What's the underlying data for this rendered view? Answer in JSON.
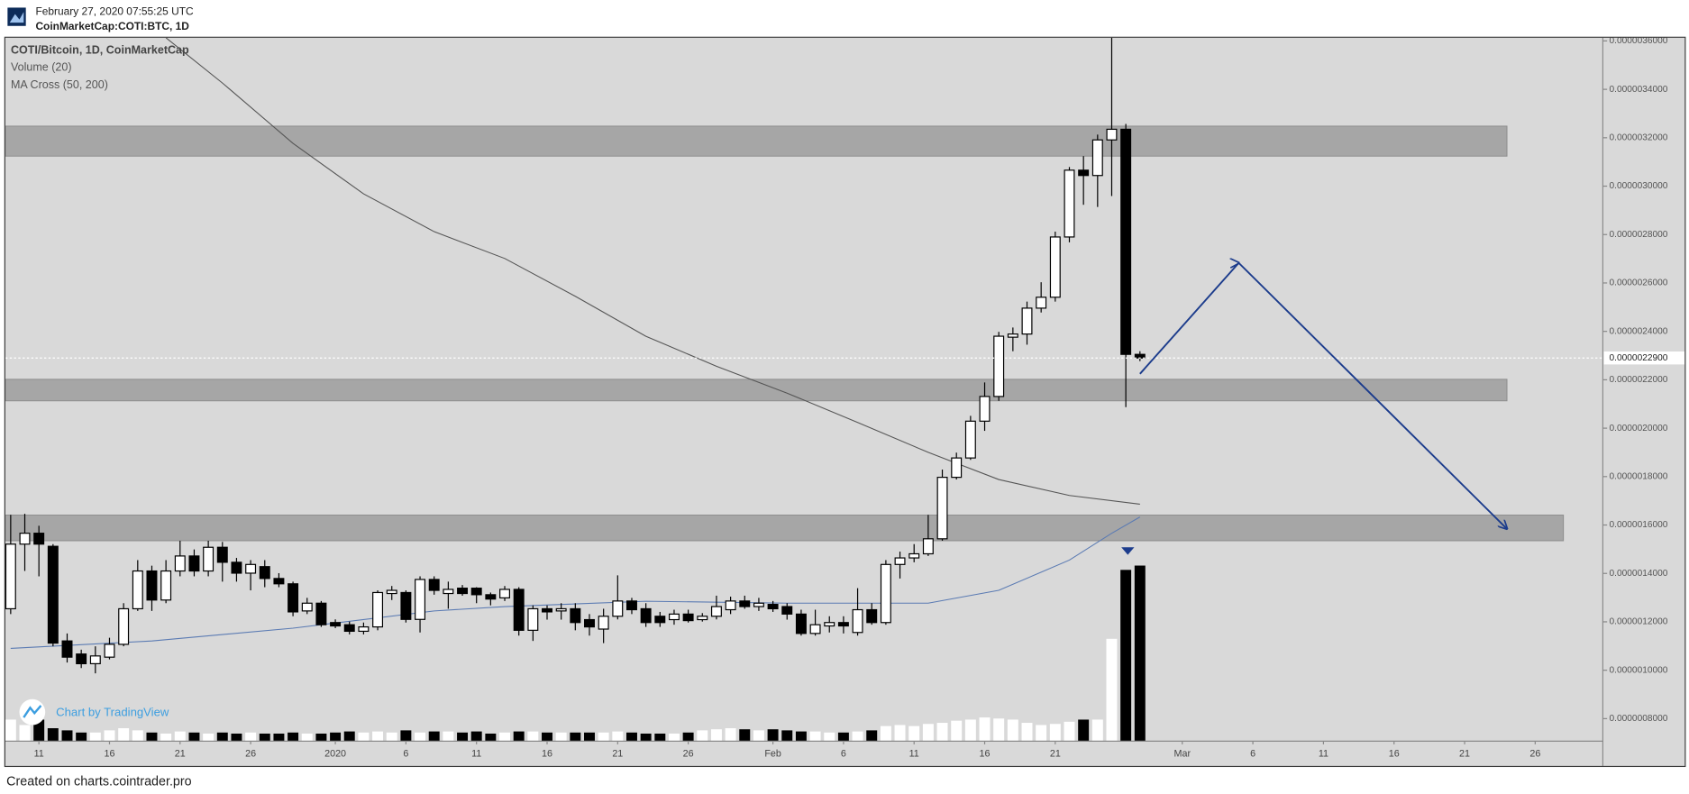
{
  "header": {
    "timestamp": "February 27, 2020 07:55:25 UTC",
    "symbol": "CoinMarketCap:COTI:BTC, 1D"
  },
  "footer": "Created on charts.cointrader.pro",
  "chart_data": {
    "type": "candlestick",
    "legend": [
      "COTI/Bitcoin, 1D, CoinMarketCap",
      "Volume (20)",
      "MA Cross (50, 200)"
    ],
    "watermark": "Chart by TradingView",
    "xlim": [
      "2019-12-08T15",
      "2020-03-30T19"
    ],
    "ylim": [
      7.07e-07,
      3.613e-06
    ],
    "yticks": [
      {
        "value": 8e-07,
        "label": "0.0000008000"
      },
      {
        "value": 1e-06,
        "label": "0.0000010000"
      },
      {
        "value": 1.2e-06,
        "label": "0.0000012000"
      },
      {
        "value": 1.4e-06,
        "label": "0.0000014000"
      },
      {
        "value": 1.6e-06,
        "label": "0.0000016000"
      },
      {
        "value": 1.8e-06,
        "label": "0.0000018000"
      },
      {
        "value": 2e-06,
        "label": "0.0000020000"
      },
      {
        "value": 2.2e-06,
        "label": "0.0000022000"
      },
      {
        "value": 2.4e-06,
        "label": "0.0000024000"
      },
      {
        "value": 2.6e-06,
        "label": "0.0000026000"
      },
      {
        "value": 2.8e-06,
        "label": "0.0000028000"
      },
      {
        "value": 3e-06,
        "label": "0.0000030000"
      },
      {
        "value": 3.2e-06,
        "label": "0.0000032000"
      },
      {
        "value": 3.4e-06,
        "label": "0.0000034000"
      },
      {
        "value": 3.6e-06,
        "label": "0.0000036000"
      }
    ],
    "xticks": [
      {
        "value": "2019-12-11",
        "label": "11"
      },
      {
        "value": "2019-12-16",
        "label": "16"
      },
      {
        "value": "2019-12-21",
        "label": "21"
      },
      {
        "value": "2019-12-26",
        "label": "26"
      },
      {
        "value": "2020-01-01",
        "label": "2020"
      },
      {
        "value": "2020-01-06",
        "label": "6"
      },
      {
        "value": "2020-01-11",
        "label": "11"
      },
      {
        "value": "2020-01-16",
        "label": "16"
      },
      {
        "value": "2020-01-21",
        "label": "21"
      },
      {
        "value": "2020-01-26",
        "label": "26"
      },
      {
        "value": "2020-02-01",
        "label": "Feb"
      },
      {
        "value": "2020-02-06",
        "label": "6"
      },
      {
        "value": "2020-02-11",
        "label": "11"
      },
      {
        "value": "2020-02-16",
        "label": "16"
      },
      {
        "value": "2020-02-21",
        "label": "21"
      },
      {
        "value": "2020-03-01",
        "label": "Mar"
      },
      {
        "value": "2020-03-06",
        "label": "6"
      },
      {
        "value": "2020-03-11",
        "label": "11"
      },
      {
        "value": "2020-03-16",
        "label": "16"
      },
      {
        "value": "2020-03-21",
        "label": "21"
      },
      {
        "value": "2020-03-26",
        "label": "26"
      }
    ],
    "last_price": {
      "value": 2.29e-06,
      "label": "0.0000022900"
    },
    "candles": {
      "up_color": "#ffffff",
      "down_color": "#000000",
      "x": [
        "2019-12-09",
        "2019-12-10",
        "2019-12-11",
        "2019-12-12",
        "2019-12-13",
        "2019-12-14",
        "2019-12-15",
        "2019-12-16",
        "2019-12-17",
        "2019-12-18",
        "2019-12-19",
        "2019-12-20",
        "2019-12-21",
        "2019-12-22",
        "2019-12-23",
        "2019-12-24",
        "2019-12-25",
        "2019-12-26",
        "2019-12-27",
        "2019-12-28",
        "2019-12-29",
        "2019-12-30",
        "2019-12-31",
        "2020-01-01",
        "2020-01-02",
        "2020-01-03",
        "2020-01-04",
        "2020-01-05",
        "2020-01-06",
        "2020-01-07",
        "2020-01-08",
        "2020-01-09",
        "2020-01-10",
        "2020-01-11",
        "2020-01-12",
        "2020-01-13",
        "2020-01-14",
        "2020-01-15",
        "2020-01-16",
        "2020-01-17",
        "2020-01-18",
        "2020-01-19",
        "2020-01-20",
        "2020-01-21",
        "2020-01-22",
        "2020-01-23",
        "2020-01-24",
        "2020-01-25",
        "2020-01-26",
        "2020-01-27",
        "2020-01-28",
        "2020-01-29",
        "2020-01-30",
        "2020-01-31",
        "2020-02-01",
        "2020-02-02",
        "2020-02-03",
        "2020-02-04",
        "2020-02-05",
        "2020-02-06",
        "2020-02-07",
        "2020-02-08",
        "2020-02-09",
        "2020-02-10",
        "2020-02-11",
        "2020-02-12",
        "2020-02-13",
        "2020-02-14",
        "2020-02-15",
        "2020-02-16",
        "2020-02-17",
        "2020-02-18",
        "2020-02-19",
        "2020-02-20",
        "2020-02-21",
        "2020-02-22",
        "2020-02-23",
        "2020-02-24",
        "2020-02-25",
        "2020-02-26",
        "2020-02-27"
      ],
      "open": [
        1.254e-06,
        1.521e-06,
        1.566e-06,
        1.512e-06,
        1.121e-06,
        1.067e-06,
        1.027e-06,
        1.054e-06,
        1.107e-06,
        1.254e-06,
        1.41e-06,
        1.29e-06,
        1.41e-06,
        1.472e-06,
        1.41e-06,
        1.508e-06,
        1.446e-06,
        1.401e-06,
        1.428e-06,
        1.379e-06,
        1.357e-06,
        1.245e-06,
        1.277e-06,
        1.197e-06,
        1.188e-06,
        1.161e-06,
        1.179e-06,
        1.317e-06,
        1.321e-06,
        1.21e-06,
        1.375e-06,
        1.317e-06,
        1.339e-06,
        1.339e-06,
        1.312e-06,
        1.299e-06,
        1.334e-06,
        1.165e-06,
        1.254e-06,
        1.245e-06,
        1.254e-06,
        1.209e-06,
        1.17e-06,
        1.223e-06,
        1.286e-06,
        1.254e-06,
        1.223e-06,
        1.209e-06,
        1.232e-06,
        1.209e-06,
        1.223e-06,
        1.25e-06,
        1.286e-06,
        1.263e-06,
        1.272e-06,
        1.263e-06,
        1.232e-06,
        1.152e-06,
        1.183e-06,
        1.197e-06,
        1.156e-06,
        1.25e-06,
        1.197e-06,
        1.437e-06,
        1.464e-06,
        1.481e-06,
        1.543e-06,
        1.797e-06,
        1.877e-06,
        2.029e-06,
        2.131e-06,
        2.376e-06,
        2.389e-06,
        2.496e-06,
        2.541e-06,
        2.79e-06,
        3.066e-06,
        3.044e-06,
        3.191e-06,
        3.235e-06,
        2.305e-06
      ],
      "close": [
        1.521e-06,
        1.566e-06,
        1.521e-06,
        1.112e-06,
        1.054e-06,
        1.027e-06,
        1.059e-06,
        1.107e-06,
        1.254e-06,
        1.41e-06,
        1.29e-06,
        1.41e-06,
        1.472e-06,
        1.41e-06,
        1.508e-06,
        1.446e-06,
        1.401e-06,
        1.437e-06,
        1.379e-06,
        1.357e-06,
        1.241e-06,
        1.277e-06,
        1.188e-06,
        1.183e-06,
        1.161e-06,
        1.179e-06,
        1.321e-06,
        1.33e-06,
        1.21e-06,
        1.375e-06,
        1.33e-06,
        1.334e-06,
        1.317e-06,
        1.312e-06,
        1.294e-06,
        1.334e-06,
        1.165e-06,
        1.254e-06,
        1.241e-06,
        1.254e-06,
        1.197e-06,
        1.179e-06,
        1.223e-06,
        1.286e-06,
        1.25e-06,
        1.197e-06,
        1.197e-06,
        1.232e-06,
        1.205e-06,
        1.223e-06,
        1.263e-06,
        1.286e-06,
        1.263e-06,
        1.277e-06,
        1.254e-06,
        1.232e-06,
        1.152e-06,
        1.188e-06,
        1.197e-06,
        1.183e-06,
        1.25e-06,
        1.197e-06,
        1.437e-06,
        1.464e-06,
        1.481e-06,
        1.543e-06,
        1.797e-06,
        1.877e-06,
        2.029e-06,
        2.131e-06,
        2.38e-06,
        2.389e-06,
        2.496e-06,
        2.541e-06,
        2.79e-06,
        3.066e-06,
        3.044e-06,
        3.191e-06,
        3.235e-06,
        2.305e-06,
        2.29e-06
      ],
      "high": [
        1.642e-06,
        1.646e-06,
        1.597e-06,
        1.521e-06,
        1.152e-06,
        1.085e-06,
        1.099e-06,
        1.134e-06,
        1.277e-06,
        1.455e-06,
        1.432e-06,
        1.455e-06,
        1.535e-06,
        1.499e-06,
        1.535e-06,
        1.53e-06,
        1.464e-06,
        1.455e-06,
        1.455e-06,
        1.401e-06,
        1.366e-06,
        1.299e-06,
        1.286e-06,
        1.21e-06,
        1.201e-06,
        1.197e-06,
        1.33e-06,
        1.348e-06,
        1.33e-06,
        1.388e-06,
        1.388e-06,
        1.366e-06,
        1.352e-06,
        1.343e-06,
        1.321e-06,
        1.348e-06,
        1.343e-06,
        1.268e-06,
        1.268e-06,
        1.277e-06,
        1.277e-06,
        1.232e-06,
        1.254e-06,
        1.392e-06,
        1.299e-06,
        1.277e-06,
        1.241e-06,
        1.25e-06,
        1.25e-06,
        1.236e-06,
        1.308e-06,
        1.304e-06,
        1.308e-06,
        1.299e-06,
        1.286e-06,
        1.277e-06,
        1.25e-06,
        1.25e-06,
        1.223e-06,
        1.223e-06,
        1.339e-06,
        1.277e-06,
        1.455e-06,
        1.49e-06,
        1.521e-06,
        1.642e-06,
        1.829e-06,
        1.899e-06,
        2.051e-06,
        2.189e-06,
        2.398e-06,
        2.416e-06,
        2.523e-06,
        2.603e-06,
        2.812e-06,
        3.079e-06,
        3.124e-06,
        3.213e-06,
        3.65e-06,
        3.257e-06,
        2.318e-06
      ],
      "low": [
        1.232e-06,
        1.41e-06,
        1.388e-06,
        1.099e-06,
        1.032e-06,
        1.009e-06,
        9.87e-07,
        1.045e-06,
        1.099e-06,
        1.245e-06,
        1.245e-06,
        1.277e-06,
        1.388e-06,
        1.388e-06,
        1.388e-06,
        1.366e-06,
        1.366e-06,
        1.33e-06,
        1.343e-06,
        1.343e-06,
        1.223e-06,
        1.232e-06,
        1.179e-06,
        1.174e-06,
        1.148e-06,
        1.148e-06,
        1.165e-06,
        1.29e-06,
        1.197e-06,
        1.156e-06,
        1.312e-06,
        1.254e-06,
        1.308e-06,
        1.277e-06,
        1.268e-06,
        1.286e-06,
        1.143e-06,
        1.121e-06,
        1.209e-06,
        1.209e-06,
        1.165e-06,
        1.143e-06,
        1.112e-06,
        1.21e-06,
        1.232e-06,
        1.179e-06,
        1.179e-06,
        1.188e-06,
        1.197e-06,
        1.201e-06,
        1.21e-06,
        1.232e-06,
        1.254e-06,
        1.245e-06,
        1.241e-06,
        1.209e-06,
        1.143e-06,
        1.143e-06,
        1.156e-06,
        1.152e-06,
        1.143e-06,
        1.188e-06,
        1.188e-06,
        1.379e-06,
        1.446e-06,
        1.472e-06,
        1.535e-06,
        1.788e-06,
        1.869e-06,
        1.989e-06,
        2.113e-06,
        2.318e-06,
        2.345e-06,
        2.478e-06,
        2.523e-06,
        2.768e-06,
        2.923e-06,
        2.914e-06,
        2.959e-06,
        2.087e-06,
        2.277e-06
      ],
      "volume": [
        20,
        15,
        20,
        12,
        10,
        8,
        8,
        10,
        12,
        10,
        8,
        7,
        9,
        8,
        7,
        8,
        7,
        8,
        7,
        7,
        8,
        7,
        7,
        8,
        9,
        8,
        9,
        8,
        10,
        8,
        9,
        9,
        8,
        9,
        7,
        8,
        9,
        9,
        8,
        8,
        8,
        8,
        8,
        9,
        8,
        7,
        7,
        7,
        8,
        10,
        11,
        12,
        11,
        10,
        11,
        10,
        9,
        9,
        8,
        8,
        9,
        10,
        14,
        15,
        14,
        16,
        17,
        19,
        20,
        22,
        21,
        20,
        17,
        15,
        16,
        18,
        20,
        20,
        95,
        159,
        163
      ]
    },
    "ma_lines": [
      {
        "color": "#555555",
        "x": [
          "2019-12-20",
          "2019-12-24",
          "2019-12-29",
          "2020-01-03",
          "2020-01-08",
          "2020-01-13",
          "2020-01-18",
          "2020-01-23",
          "2020-01-28",
          "2020-02-02",
          "2020-02-07",
          "2020-02-12",
          "2020-02-17",
          "2020-02-22",
          "2020-02-27"
        ],
        "values": [
          3.613e-06,
          3.426e-06,
          3.177e-06,
          2.968e-06,
          2.812e-06,
          2.701e-06,
          2.545e-06,
          2.38e-06,
          2.256e-06,
          2.145e-06,
          2.024e-06,
          1.9e-06,
          1.788e-06,
          1.722e-06,
          1.686e-06
        ]
      },
      {
        "color": "#5b7bb3",
        "x": [
          "2019-12-09",
          "2019-12-19",
          "2019-12-29",
          "2020-01-08",
          "2020-01-13",
          "2020-01-23",
          "2020-02-02",
          "2020-02-07",
          "2020-02-12",
          "2020-02-17",
          "2020-02-22",
          "2020-02-25",
          "2020-02-27"
        ],
        "values": [
          1.09e-06,
          1.121e-06,
          1.174e-06,
          1.245e-06,
          1.263e-06,
          1.285e-06,
          1.277e-06,
          1.277e-06,
          1.277e-06,
          1.33e-06,
          1.455e-06,
          1.566e-06,
          1.633e-06
        ]
      }
    ],
    "zones": [
      {
        "color": "#a6a6a6",
        "x": [
          "2019-12-08T15",
          "2020-03-24"
        ],
        "range": [
          3.124e-06,
          3.248e-06
        ]
      },
      {
        "color": "#a6a6a6",
        "x": [
          "2019-12-08T15",
          "2020-03-24"
        ],
        "range": [
          2.113e-06,
          2.202e-06
        ]
      },
      {
        "color": "#a6a6a6",
        "x": [
          "2019-12-08T15",
          "2020-03-28"
        ],
        "range": [
          1.535e-06,
          1.641e-06
        ]
      }
    ],
    "projection": {
      "color": "#1c3c8c",
      "x": [
        "2020-02-27",
        "2020-03-05",
        "2020-03-24"
      ],
      "values": [
        2.2245e-06,
        2.683e-06,
        1.584e-06
      ]
    }
  }
}
